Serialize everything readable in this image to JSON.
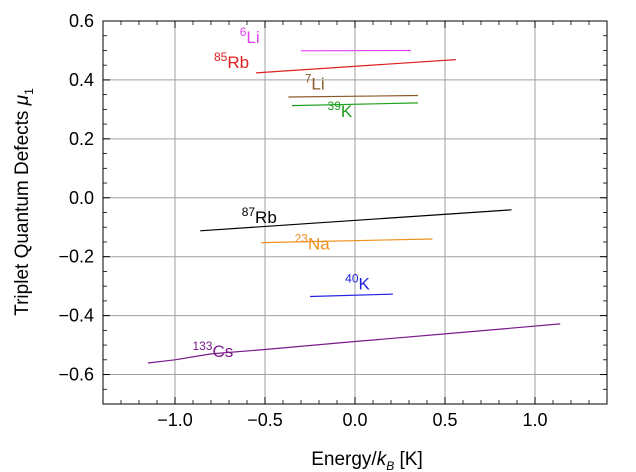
{
  "chart_data": {
    "type": "line",
    "xlabel": {
      "main": "Energy/",
      "var": "k",
      "sub": "B",
      "unit": " [K]"
    },
    "ylabel": {
      "main": "Triplet Quantum Defects ",
      "var": "μ",
      "sub": "1"
    },
    "xlim": [
      -1.4,
      1.4
    ],
    "ylim": [
      -0.7,
      0.6
    ],
    "xticks": [
      -1.0,
      -0.5,
      0.0,
      0.5,
      1.0
    ],
    "xtick_labels": [
      "−1.0",
      "−0.5",
      "0.0",
      "0.5",
      "1.0"
    ],
    "yticks": [
      -0.6,
      -0.4,
      -0.2,
      0.0,
      0.2,
      0.4,
      0.6
    ],
    "ytick_labels": [
      "−0.6",
      "−0.4",
      "−0.2",
      "0.0",
      "0.2",
      "0.4",
      "0.6"
    ],
    "grid": true,
    "series": [
      {
        "name": "⁶Li",
        "mass": "6",
        "element": "Li",
        "color": "#e040f0",
        "x": [
          -0.3,
          0.31
        ],
        "y": [
          0.499,
          0.5
        ]
      },
      {
        "name": "⁸⁵Rb",
        "mass": "85",
        "element": "Rb",
        "color": "#e02020",
        "x": [
          -0.55,
          0.56
        ],
        "y": [
          0.424,
          0.469
        ]
      },
      {
        "name": "⁷Li",
        "mass": "7",
        "element": "Li",
        "color": "#8b5a2b",
        "x": [
          -0.37,
          0.35
        ],
        "y": [
          0.342,
          0.347
        ]
      },
      {
        "name": "³⁹K",
        "mass": "39",
        "element": "K",
        "color": "#1ea01e",
        "x": [
          -0.35,
          0.35
        ],
        "y": [
          0.313,
          0.322
        ]
      },
      {
        "name": "⁸⁷Rb",
        "mass": "87",
        "element": "Rb",
        "color": "#000000",
        "x": [
          -0.86,
          0.87
        ],
        "y": [
          -0.112,
          -0.041
        ]
      },
      {
        "name": "²³Na",
        "mass": "23",
        "element": "Na",
        "color": "#f09020",
        "x": [
          -0.52,
          0.43
        ],
        "y": [
          -0.152,
          -0.14
        ]
      },
      {
        "name": "⁴⁰K",
        "mass": "40",
        "element": "K",
        "color": "#2020e0",
        "x": [
          -0.25,
          0.21
        ],
        "y": [
          -0.335,
          -0.327
        ]
      },
      {
        "name": "¹³³Cs",
        "mass": "133",
        "element": "Cs",
        "color": "#7a1a8a",
        "x": [
          -1.15,
          -1.0,
          -0.8,
          -0.5,
          0.0,
          0.5,
          1.14
        ],
        "y": [
          -0.561,
          -0.55,
          -0.53,
          -0.515,
          -0.488,
          -0.462,
          -0.428
        ]
      }
    ]
  }
}
